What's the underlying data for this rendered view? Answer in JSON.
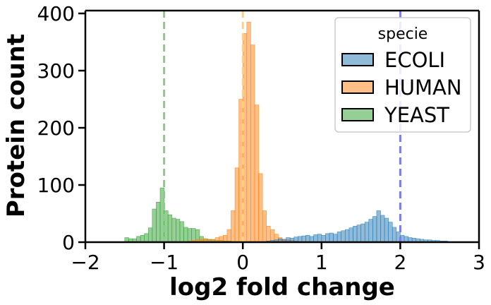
{
  "chart_data": {
    "type": "histogram",
    "xlabel": "log2 fold change",
    "ylabel": "Protein count",
    "xlim": [
      -2,
      3
    ],
    "ylim": [
      0,
      405
    ],
    "x_ticks": [
      -2,
      -1,
      0,
      1,
      2,
      3
    ],
    "x_tick_labels": [
      "−2",
      "−1",
      "0",
      "1",
      "2",
      "3"
    ],
    "y_ticks": [
      0,
      100,
      200,
      300,
      400
    ],
    "y_tick_labels": [
      "0",
      "100",
      "200",
      "300",
      "400"
    ],
    "grid": false,
    "bin_width": 0.05,
    "legend": {
      "title": "specie",
      "position": "top-right",
      "entries": [
        "ECOLI",
        "HUMAN",
        "YEAST"
      ]
    },
    "colors": {
      "ECOLI": "#1f77b4",
      "HUMAN": "#ff7f0e",
      "YEAST": "#2ca02c",
      "ECOLI_line": "#7b7bf2",
      "HUMAN_line": "#ffd27a",
      "YEAST_line": "#8fc98f"
    },
    "reference_lines": [
      {
        "series": "YEAST",
        "x": -1
      },
      {
        "series": "HUMAN",
        "x": 0
      },
      {
        "series": "ECOLI",
        "x": 2
      }
    ],
    "series": [
      {
        "name": "ECOLI",
        "bin_start": 0.3,
        "values": [
          2,
          3,
          4,
          6,
          5,
          8,
          7,
          9,
          10,
          11,
          12,
          10,
          13,
          14,
          12,
          15,
          16,
          14,
          18,
          20,
          22,
          25,
          28,
          30,
          32,
          35,
          40,
          45,
          55,
          47,
          42,
          35,
          26,
          18,
          12,
          10,
          8,
          7,
          6,
          5,
          4,
          4,
          3,
          3,
          2,
          2,
          1
        ]
      },
      {
        "name": "HUMAN",
        "bin_start": -0.7,
        "values": [
          2,
          3,
          5,
          5,
          6,
          4,
          5,
          8,
          10,
          12,
          22,
          55,
          130,
          250,
          365,
          385,
          345,
          240,
          120,
          55,
          28,
          22,
          14,
          8,
          5,
          4,
          3,
          2
        ]
      },
      {
        "name": "YEAST",
        "bin_start": -1.5,
        "values": [
          8,
          6,
          6,
          10,
          12,
          15,
          25,
          58,
          70,
          95,
          55,
          48,
          42,
          40,
          36,
          26,
          24,
          24,
          22,
          10,
          6,
          5,
          4,
          3,
          3,
          2,
          2,
          1
        ]
      }
    ]
  }
}
